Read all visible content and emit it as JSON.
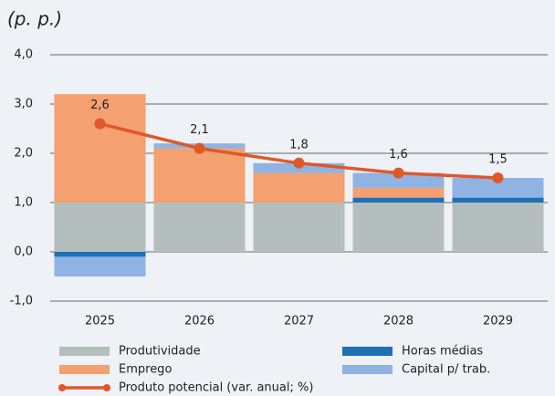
{
  "chart_data": {
    "type": "bar",
    "title": "(p. p.)",
    "categories": [
      "2025",
      "2026",
      "2027",
      "2028",
      "2029"
    ],
    "series": [
      {
        "name": "Produtividade",
        "color": "#b4bfbd",
        "values": [
          1.0,
          1.0,
          1.0,
          1.0,
          1.0
        ]
      },
      {
        "name": "Horas médias",
        "color": "#1f6fb5",
        "values": [
          -0.1,
          0,
          0,
          0.1,
          0.1
        ]
      },
      {
        "name": "Emprego",
        "color": "#f4a070",
        "values": [
          2.2,
          1.1,
          0.6,
          0.2,
          0
        ]
      },
      {
        "name": "Capital p/ trab.",
        "color": "#8fb3e3",
        "values": [
          -0.4,
          0.1,
          0.2,
          0.3,
          0.4
        ]
      },
      {
        "name": "Produto potencial (var. anual; %)",
        "type": "line",
        "color": "#e0582a",
        "values": [
          2.6,
          2.1,
          1.8,
          1.6,
          1.5
        ],
        "value_labels": [
          "2,6",
          "2,1",
          "1,8",
          "1,6",
          "1,5"
        ]
      }
    ],
    "ylim": [
      -1,
      4
    ],
    "yticks": [
      {
        "value": -1,
        "label": "-1,0"
      },
      {
        "value": 0,
        "label": "0,0"
      },
      {
        "value": 1,
        "label": "1,0"
      },
      {
        "value": 2,
        "label": "2,0"
      },
      {
        "value": 3,
        "label": "3,0"
      },
      {
        "value": 4,
        "label": "4,0"
      }
    ],
    "grid": true
  }
}
